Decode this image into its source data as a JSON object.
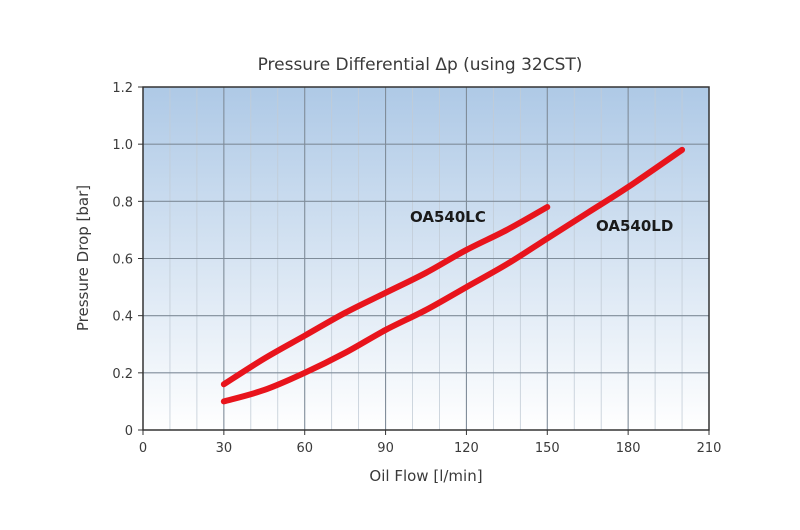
{
  "chart_data": {
    "type": "line",
    "title": "Pressure Differential Δp  (using 32CST)",
    "xlabel": "Oil Flow [l/min]",
    "ylabel": "Pressure Drop [bar]",
    "xlim": [
      0,
      210
    ],
    "ylim": [
      0,
      1.2
    ],
    "x_ticks": [
      "0",
      "30",
      "60",
      "90",
      "120",
      "150",
      "180",
      "210"
    ],
    "y_ticks": [
      "0",
      "0.2",
      "0.4",
      "0.6",
      "0.8",
      "1.0",
      "1.2"
    ],
    "x_tick_values": [
      0,
      30,
      60,
      90,
      120,
      150,
      180,
      210
    ],
    "y_tick_values": [
      0,
      0.2,
      0.4,
      0.6,
      0.8,
      1.0,
      1.2
    ],
    "grid": true,
    "series": [
      {
        "name": "OA540LC",
        "color": "#e8141c",
        "x": [
          30,
          45,
          60,
          75,
          90,
          105,
          120,
          135,
          150
        ],
        "y": [
          0.16,
          0.25,
          0.33,
          0.41,
          0.48,
          0.55,
          0.63,
          0.7,
          0.78
        ]
      },
      {
        "name": "OA540LD",
        "color": "#e8141c",
        "x": [
          30,
          45,
          60,
          75,
          90,
          105,
          120,
          135,
          150,
          165,
          180,
          200
        ],
        "y": [
          0.1,
          0.14,
          0.2,
          0.27,
          0.35,
          0.42,
          0.5,
          0.58,
          0.67,
          0.76,
          0.85,
          0.98
        ]
      }
    ],
    "background_gradient": [
      "#aec9e6",
      "#ffffff"
    ]
  }
}
